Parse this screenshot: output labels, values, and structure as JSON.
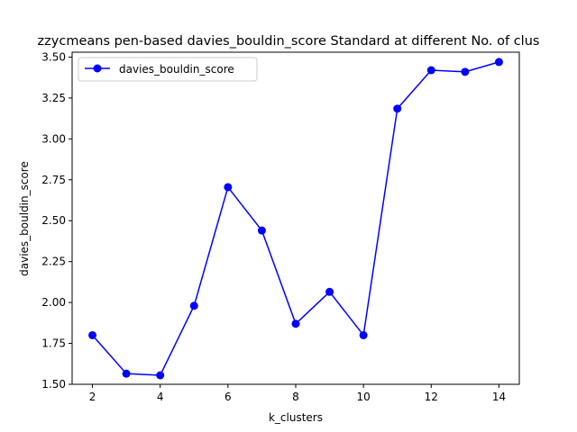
{
  "chart_data": {
    "type": "line",
    "title": "zzycmeans pen-based davies_bouldin_score Standard at different No. of clus",
    "xlabel": "k_clusters",
    "ylabel": "davies_bouldin_score",
    "xlim": [
      1.4,
      14.6
    ],
    "ylim": [
      1.5,
      3.53
    ],
    "xticks": [
      2,
      4,
      6,
      8,
      10,
      12,
      14
    ],
    "yticks": [
      1.5,
      1.75,
      2.0,
      2.25,
      2.5,
      2.75,
      3.0,
      3.25,
      3.5
    ],
    "ytick_labels": [
      "1.50",
      "1.75",
      "2.00",
      "2.25",
      "2.50",
      "2.75",
      "3.00",
      "3.25",
      "3.50"
    ],
    "legend_position": "top-left",
    "grid": false,
    "series": [
      {
        "name": "davies_bouldin_score",
        "color": "#0000ff",
        "marker": "circle",
        "x": [
          2,
          3,
          4,
          5,
          6,
          7,
          8,
          9,
          10,
          11,
          12,
          13,
          14
        ],
        "y": [
          1.8,
          1.565,
          1.555,
          1.98,
          2.705,
          2.44,
          1.87,
          2.065,
          1.8,
          3.185,
          3.42,
          3.41,
          3.47
        ]
      }
    ]
  }
}
